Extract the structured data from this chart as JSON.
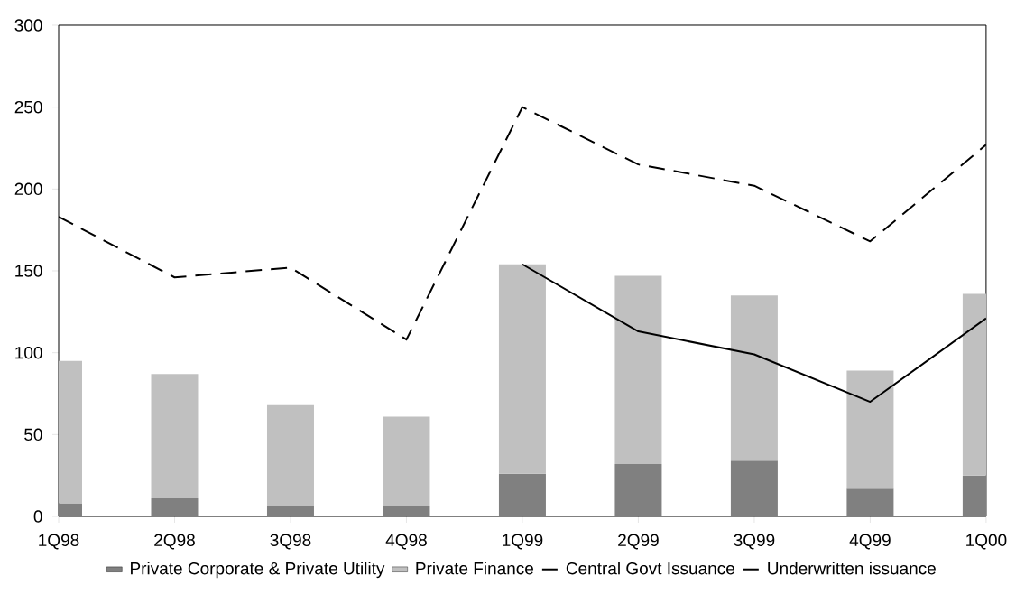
{
  "chart_data": {
    "type": "bar",
    "stacked": true,
    "categories": [
      "1Q98",
      "2Q98",
      "3Q98",
      "4Q98",
      "1Q99",
      "2Q99",
      "3Q99",
      "4Q99",
      "1Q00"
    ],
    "ylim": [
      0,
      300
    ],
    "yticks": [
      0,
      50,
      100,
      150,
      200,
      250,
      300
    ],
    "legend": "bottom",
    "series": [
      {
        "name": "Private Corporate & Private Utility",
        "color": "#808080",
        "values": [
          8,
          11,
          6,
          6,
          26,
          32,
          34,
          17,
          25
        ]
      },
      {
        "name": "Private Finance",
        "color": "#c0c0c0",
        "values": [
          87,
          76,
          62,
          55,
          128,
          115,
          101,
          72,
          111
        ]
      },
      {
        "name": "Central Govt Issuance",
        "type": "line",
        "line_style": "solid",
        "color": "#000000",
        "values": [
          null,
          null,
          null,
          null,
          154,
          113,
          99,
          70,
          121
        ]
      },
      {
        "name": "Underwritten issuance",
        "type": "line",
        "line_style": "dashed",
        "color": "#000000",
        "values": [
          183,
          146,
          152,
          108,
          250,
          215,
          202,
          168,
          227
        ]
      }
    ]
  }
}
